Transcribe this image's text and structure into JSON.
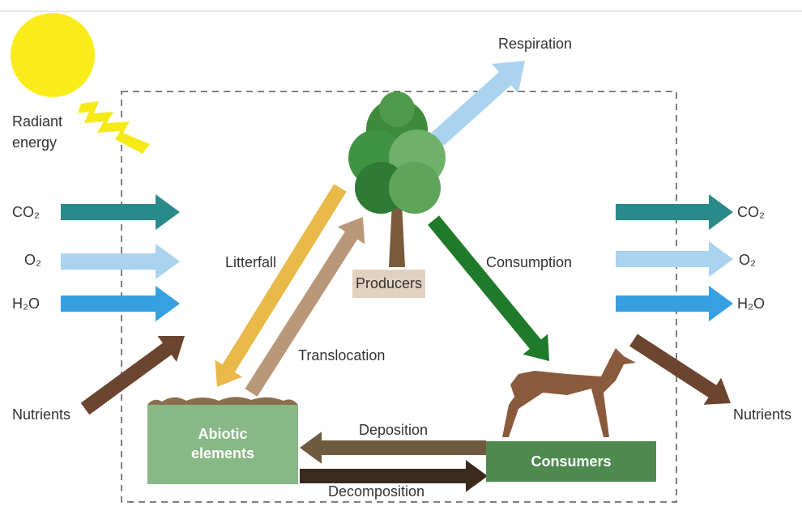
{
  "left": {
    "radiant_energy": [
      "Radiant",
      "energy"
    ],
    "co2": "CO₂",
    "o2": "O₂",
    "h2o": "H₂O",
    "nutrients": "Nutrients"
  },
  "right": {
    "co2": "CO₂",
    "o2": "O₂",
    "h2o": "H₂O",
    "nutrients": "Nutrients"
  },
  "flows": {
    "respiration": "Respiration",
    "litterfall": "Litterfall",
    "translocation": "Translocation",
    "consumption": "Consumption",
    "deposition": "Deposition",
    "decomposition": "Decomposition"
  },
  "nodes": {
    "producers": "Producers",
    "abiotic": [
      "Abiotic",
      "elements"
    ],
    "consumers": "Consumers"
  }
}
